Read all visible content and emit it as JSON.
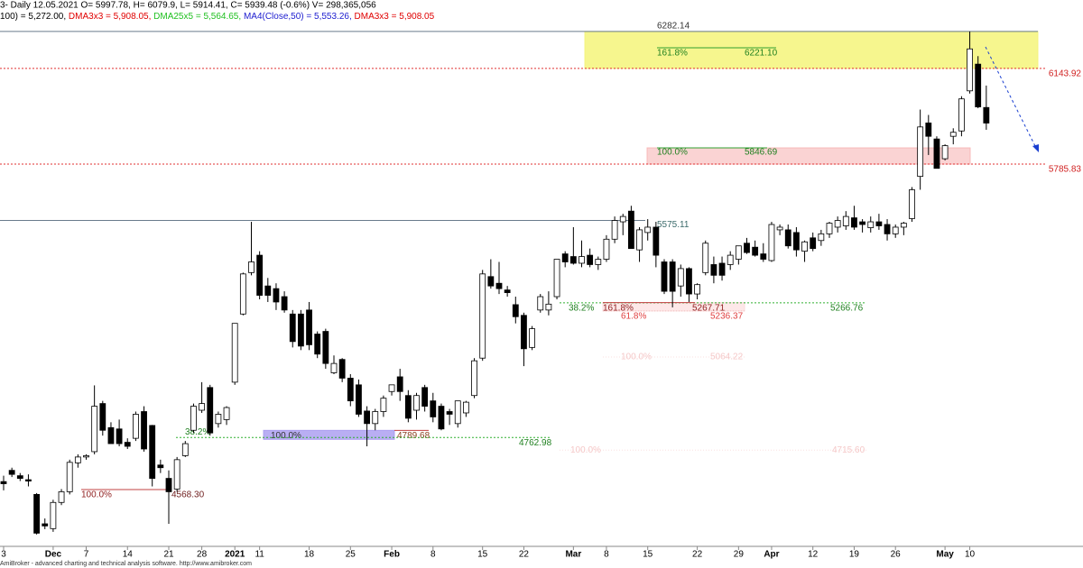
{
  "chart_data": {
    "type": "candlestick",
    "title": "3- Daily 12.05.2021 O= 5997.78, H= 6079.9, L= 5914.41, C= 5939.48 (-0.6%) V= 298,365,056",
    "subtitle_parts": [
      {
        "text": "100) = 5,272.00, ",
        "color": "#000000"
      },
      {
        "text": "DMA3x3 = 5,908.05, ",
        "color": "#e00000"
      },
      {
        "text": "DMA25x5 = 5,564.65, ",
        "color": "#20c020"
      },
      {
        "text": "MA4(Close,50) = 5,553.26, ",
        "color": "#2020d0"
      },
      {
        "text": "DMA3x3 = 5,908.05",
        "color": "#e00000"
      }
    ],
    "footer": "AmiBroker - advanced charting and technical analysis software. http://www.amibroker.com",
    "up_color": "#ffffff",
    "down_color": "#000000",
    "ylim": [
      4359,
      6400
    ],
    "categories": [
      "3",
      null,
      null,
      null,
      null,
      null,
      "Dec",
      null,
      null,
      null,
      "7",
      null,
      null,
      null,
      null,
      "14",
      null,
      null,
      null,
      null,
      "21",
      null,
      null,
      null,
      "28",
      null,
      null,
      null,
      "2021",
      null,
      null,
      "11",
      null,
      null,
      null,
      null,
      null,
      "18",
      null,
      null,
      null,
      null,
      "25",
      null,
      null,
      null,
      null,
      "Feb",
      null,
      null,
      null,
      null,
      "8",
      null,
      null,
      null,
      null,
      null,
      "15",
      null,
      null,
      null,
      null,
      "22",
      null,
      null,
      null,
      null,
      null,
      "Mar",
      null,
      null,
      null,
      "8",
      null,
      null,
      null,
      null,
      "15",
      null,
      null,
      null,
      null,
      null,
      "22",
      null,
      null,
      null,
      null,
      "29",
      null,
      null,
      null,
      "Apr",
      null,
      null,
      null,
      null,
      "12",
      null,
      null,
      null,
      null,
      "19",
      null,
      null,
      null,
      null,
      "26",
      null,
      null,
      null,
      null,
      null,
      "May",
      null,
      null,
      "10",
      null,
      null
    ],
    "open": [
      4598,
      4640,
      4620,
      4605,
      4550,
      4440,
      4422,
      4520,
      4560,
      4668,
      4690,
      4710,
      4890,
      4800,
      4795,
      4745,
      4760,
      4860,
      4808,
      4660,
      4610,
      4570,
      4695,
      4790,
      4865,
      4950,
      4815,
      4830,
      4970,
      5225,
      5380,
      5445,
      5330,
      5320,
      5290,
      5225,
      5225,
      5240,
      5150,
      5160,
      5005,
      5055,
      4985,
      4960,
      4862,
      4815,
      4860,
      4935,
      4990,
      4920,
      4865,
      4950,
      4900,
      4880,
      4860,
      4815,
      4855,
      4920,
      5060,
      5365,
      5340,
      5315,
      5260,
      5220,
      5100,
      5240,
      5240,
      5290,
      5450,
      5440,
      5415,
      5445,
      5410,
      5430,
      5505,
      5570,
      5610,
      5465,
      5530,
      5550,
      5420,
      5420,
      5330,
      5395,
      5300,
      5380,
      5410,
      5415,
      5410,
      5430,
      5490,
      5475,
      5450,
      5425,
      5540,
      5540,
      5530,
      5460,
      5510,
      5500,
      5525,
      5550,
      5555,
      5585,
      5570,
      5548,
      5570,
      5560,
      5525,
      5550,
      5582,
      5740,
      5940,
      5880,
      5806,
      5890,
      5910,
      6060,
      6160,
      5997.78
    ],
    "high": [
      4620,
      4650,
      4630,
      4625,
      4555,
      4460,
      4530,
      4570,
      4680,
      4700,
      4700,
      4958,
      4900,
      4820,
      4830,
      4760,
      4860,
      4880,
      4810,
      4680,
      4640,
      4690,
      4750,
      4890,
      4970,
      4960,
      4860,
      4880,
      5190,
      5380,
      5570,
      5460,
      5360,
      5340,
      5310,
      5240,
      5240,
      5270,
      5160,
      5170,
      5070,
      5060,
      5000,
      4980,
      4880,
      4870,
      4920,
      4960,
      5020,
      4940,
      4930,
      4960,
      4930,
      4890,
      4870,
      4900,
      4900,
      5060,
      5390,
      5430,
      5420,
      5330,
      5290,
      5230,
      5180,
      5300,
      5310,
      5430,
      5460,
      5550,
      5500,
      5470,
      5440,
      5520,
      5590,
      5600,
      5630,
      5550,
      5580,
      5570,
      5430,
      5430,
      5410,
      5400,
      5340,
      5500,
      5440,
      5440,
      5460,
      5480,
      5510,
      5500,
      5490,
      5570,
      5560,
      5560,
      5550,
      5500,
      5530,
      5540,
      5570,
      5590,
      5610,
      5630,
      5580,
      5590,
      5600,
      5580,
      5560,
      5570,
      5700,
      5990,
      5970,
      5890,
      5860,
      5920,
      6040,
      6282.14,
      6190,
      6079.9
    ],
    "low": [
      4565,
      4615,
      4600,
      4580,
      4400,
      4420,
      4410,
      4510,
      4550,
      4650,
      4680,
      4700,
      4770,
      4740,
      4730,
      4720,
      4750,
      4710,
      4580,
      4630,
      4440,
      4560,
      4690,
      4780,
      4855,
      4770,
      4800,
      4810,
      4960,
      5220,
      5370,
      5280,
      5270,
      5240,
      5230,
      5100,
      5090,
      5090,
      5060,
      5020,
      5000,
      4970,
      4880,
      4840,
      4730,
      4790,
      4840,
      4920,
      4900,
      4820,
      4830,
      4860,
      4820,
      4790,
      4810,
      4800,
      4840,
      4910,
      5050,
      5320,
      5300,
      5290,
      5190,
      5030,
      5090,
      5230,
      5220,
      5280,
      5400,
      5410,
      5400,
      5400,
      5390,
      5420,
      5490,
      5520,
      5470,
      5420,
      5500,
      5400,
      5300,
      5250,
      5290,
      5270,
      5280,
      5370,
      5340,
      5350,
      5390,
      5410,
      5450,
      5440,
      5420,
      5420,
      5520,
      5470,
      5440,
      5420,
      5460,
      5480,
      5510,
      5530,
      5540,
      5540,
      5530,
      5530,
      5540,
      5500,
      5510,
      5520,
      5570,
      5690,
      5820,
      5770,
      5800,
      5860,
      5890,
      6050,
      5995,
      5914.41
    ],
    "close": [
      4590,
      4625,
      4610,
      4600,
      4405,
      4432,
      4520,
      4560,
      4670,
      4690,
      4695,
      4880,
      4790,
      4740,
      4740,
      4730,
      4850,
      4720,
      4610,
      4650,
      4560,
      4680,
      4740,
      4880,
      4890,
      4780,
      4850,
      4875,
      5190,
      5375,
      5420,
      5295,
      5295,
      5270,
      5240,
      5122,
      5105,
      5110,
      5075,
      5040,
      5040,
      4985,
      4900,
      4850,
      4815,
      4860,
      4910,
      4960,
      4935,
      4835,
      4920,
      4880,
      4840,
      4795,
      4850,
      4900,
      4895,
      5050,
      5375,
      5330,
      5320,
      5305,
      5215,
      5095,
      5170,
      5290,
      5262,
      5430,
      5420,
      5415,
      5440,
      5410,
      5430,
      5505,
      5575,
      5590,
      5470,
      5540,
      5550,
      5445,
      5310,
      5310,
      5395,
      5300,
      5335,
      5490,
      5370,
      5370,
      5445,
      5480,
      5455,
      5445,
      5430,
      5560,
      5550,
      5480,
      5465,
      5495,
      5470,
      5525,
      5565,
      5575,
      5590,
      5550,
      5560,
      5570,
      5555,
      5525,
      5550,
      5565,
      5690,
      5925,
      5890,
      5770,
      5855,
      5905,
      6030,
      6217,
      6000,
      5939.48
    ],
    "annotations": [
      {
        "value": 6282.14,
        "label": "6282.14"
      },
      {
        "value": 6143.92,
        "label": "6143.92"
      },
      {
        "pct": "161.8%",
        "value": 6221.1,
        "label": "6221.10"
      },
      {
        "value": 5785.83,
        "label": "5785.83"
      },
      {
        "pct": "100.0%",
        "value": 5846.69,
        "label": "5846.69"
      },
      {
        "value": 5575.11,
        "label": "5575.11"
      },
      {
        "pct": "38.2%",
        "value": 5266.76,
        "label": "5266.76"
      },
      {
        "pct": "161.8%",
        "value": 5267.71,
        "label": "5267.71"
      },
      {
        "pct": "61.8%",
        "value": 5236.37,
        "label": "5236.37"
      },
      {
        "pct": "100.0%",
        "value": 5064.22,
        "label": "5064.22"
      },
      {
        "pct": "100.0%",
        "value": 4715.6,
        "label": "4715.60"
      },
      {
        "pct": "100.0%",
        "value": 4789.68,
        "label": "4789.68"
      },
      {
        "pct": "38.2%",
        "value": 4762.98,
        "label": "4762.98"
      },
      {
        "pct": "100.0%",
        "value": 4568.3,
        "label": "4568.30"
      }
    ]
  }
}
